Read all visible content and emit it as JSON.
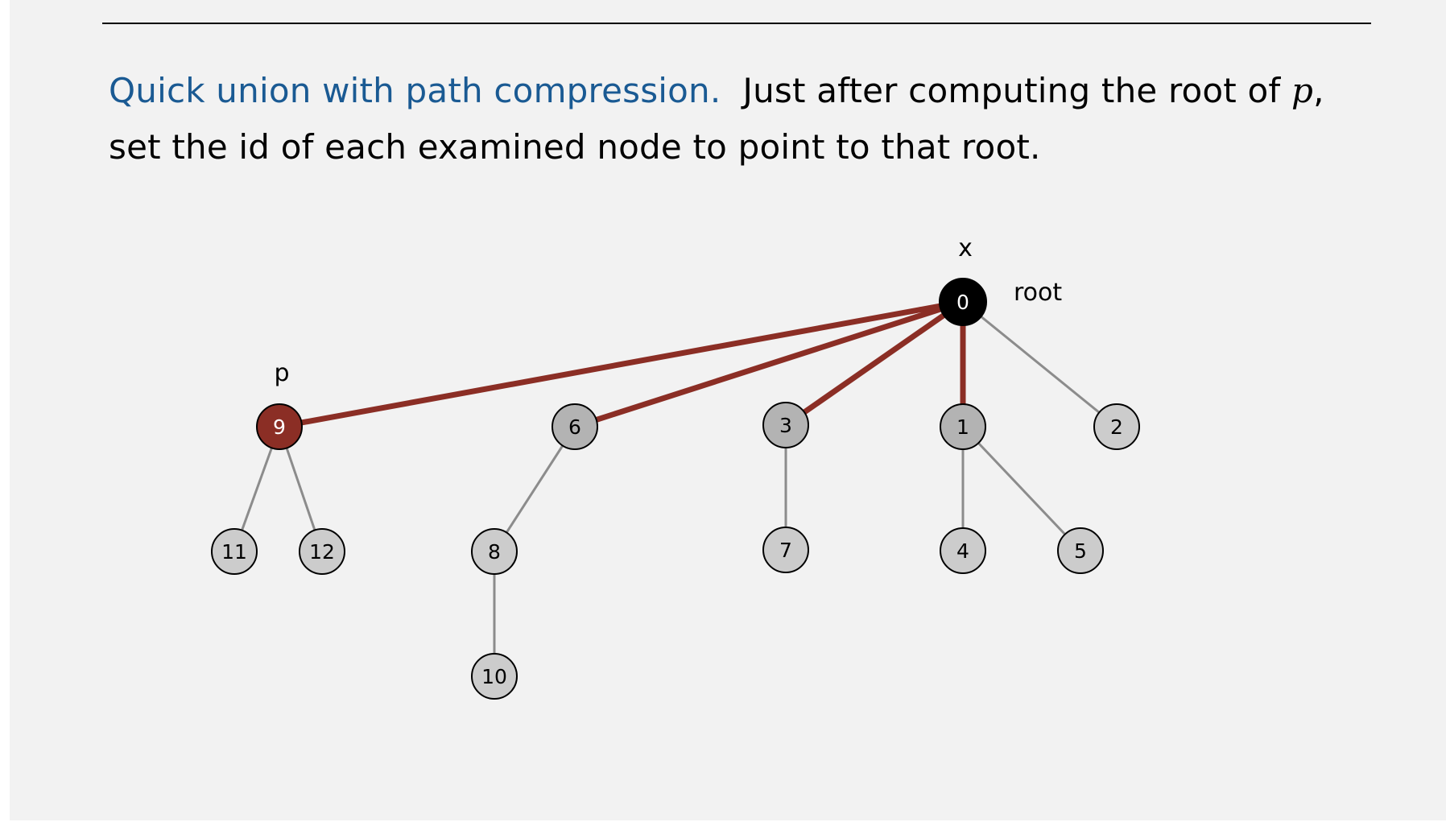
{
  "text": {
    "lead": "Quick union with path compression.",
    "rest1": "Just after computing the root of ",
    "var_p": "p",
    "comma": ",",
    "line2": "set the id of each examined node to point to that root."
  },
  "colors": {
    "lead_blue": "#1a5a93",
    "path_red": "#8b2e25",
    "root_black": "#000000",
    "node_gray": "#cccccc",
    "node_dark_gray": "#b3b3b3",
    "edge_gray": "#8c8c8c"
  },
  "tree": {
    "nodes": [
      {
        "id": "0",
        "style": "root"
      },
      {
        "id": "9",
        "style": "red"
      },
      {
        "id": "6",
        "style": "dark"
      },
      {
        "id": "3",
        "style": "dark"
      },
      {
        "id": "1",
        "style": "dark"
      },
      {
        "id": "2",
        "style": "light"
      },
      {
        "id": "11",
        "style": "light"
      },
      {
        "id": "12",
        "style": "light"
      },
      {
        "id": "8",
        "style": "light"
      },
      {
        "id": "7",
        "style": "light"
      },
      {
        "id": "4",
        "style": "light"
      },
      {
        "id": "5",
        "style": "light"
      },
      {
        "id": "10",
        "style": "light"
      }
    ],
    "edges": [
      {
        "from": "0",
        "to": "9",
        "style": "hot"
      },
      {
        "from": "0",
        "to": "6",
        "style": "hot"
      },
      {
        "from": "0",
        "to": "3",
        "style": "hot"
      },
      {
        "from": "0",
        "to": "1",
        "style": "hot"
      },
      {
        "from": "0",
        "to": "2",
        "style": "plain"
      },
      {
        "from": "9",
        "to": "11",
        "style": "plain"
      },
      {
        "from": "9",
        "to": "12",
        "style": "plain"
      },
      {
        "from": "6",
        "to": "8",
        "style": "plain"
      },
      {
        "from": "8",
        "to": "10",
        "style": "plain"
      },
      {
        "from": "3",
        "to": "7",
        "style": "plain"
      },
      {
        "from": "1",
        "to": "4",
        "style": "plain"
      },
      {
        "from": "1",
        "to": "5",
        "style": "plain"
      }
    ],
    "labels": [
      {
        "text": "x",
        "node": "0",
        "where": "above"
      },
      {
        "text": "root",
        "node": "0",
        "where": "right"
      },
      {
        "text": "p",
        "node": "9",
        "where": "above"
      }
    ]
  }
}
